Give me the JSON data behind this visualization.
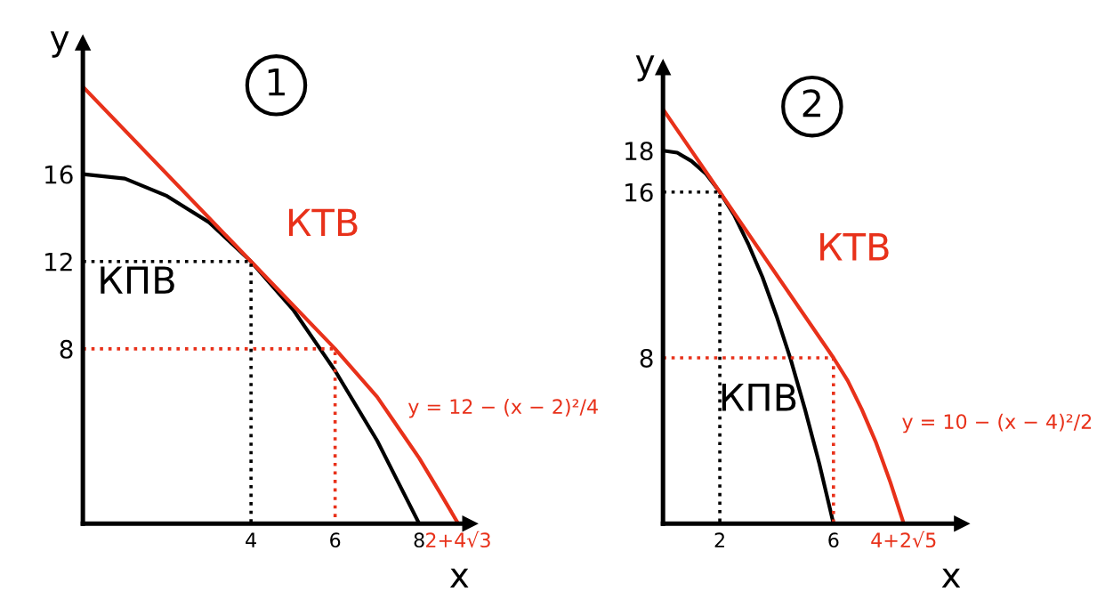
{
  "chart_data": [
    {
      "type": "line",
      "title": "1",
      "xlabel": "x",
      "ylabel": "y",
      "xlim": [
        0,
        9.2
      ],
      "ylim": [
        0,
        22
      ],
      "xticks": [
        4,
        6,
        8,
        {
          "value": 8.928,
          "label": "2+4√3"
        }
      ],
      "yticks": [
        8,
        12,
        16
      ],
      "grid": false,
      "legend": false,
      "series": [
        {
          "color": "#000000",
          "x": [
            0,
            0.5,
            1,
            1.5,
            2,
            2.5,
            3,
            3.5,
            4,
            4.5,
            5,
            5.5,
            6,
            6.5,
            7,
            7.5,
            8
          ],
          "values": [
            16,
            15.9,
            15.8,
            15.4,
            15,
            14.4,
            13.8,
            12.9,
            12,
            10.9,
            9.8,
            8.4,
            7,
            5.4,
            3.8,
            1.9,
            0
          ]
        },
        {
          "color": "#e8311a",
          "x": [
            0,
            4,
            6,
            6.5,
            7,
            7.5,
            8,
            8.5,
            8.928
          ],
          "values": [
            20,
            12,
            8,
            6.9,
            5.8,
            4.4,
            3,
            1.4,
            0
          ]
        },
        {
          "color": "#000000",
          "line_style": "dotted",
          "x": [
            0,
            4,
            4
          ],
          "values": [
            12,
            12,
            0
          ]
        },
        {
          "color": "#e8311a",
          "line_style": "dotted",
          "x": [
            0,
            6,
            6
          ],
          "values": [
            8,
            8,
            0
          ]
        }
      ],
      "annotations": [
        "КТВ",
        "КПВ",
        "y = 12 − (x − 2)²/4"
      ]
    },
    {
      "type": "line",
      "title": "2",
      "xlabel": "x",
      "ylabel": "y",
      "xlim": [
        0,
        10.5
      ],
      "ylim": [
        0,
        22
      ],
      "xticks": [
        2,
        6,
        {
          "value": 8.472,
          "label": "4+2√5"
        }
      ],
      "yticks": [
        8,
        16,
        18
      ],
      "grid": false,
      "legend": false,
      "series": [
        {
          "color": "#000000",
          "x": [
            0,
            0.5,
            1,
            1.5,
            2,
            2.5,
            3,
            3.5,
            4,
            4.5,
            5,
            5.5,
            6
          ],
          "values": [
            18,
            17.9,
            17.5,
            16.9,
            16,
            14.9,
            13.5,
            11.9,
            10,
            7.9,
            5.5,
            2.9,
            0
          ]
        },
        {
          "color": "#e8311a",
          "x": [
            0,
            2,
            6,
            6.5,
            7,
            7.5,
            8,
            8.472
          ],
          "values": [
            20,
            16,
            8,
            6.9,
            5.5,
            3.9,
            2,
            0
          ]
        },
        {
          "color": "#000000",
          "line_style": "dotted",
          "x": [
            0,
            2,
            2
          ],
          "values": [
            16,
            16,
            0
          ]
        },
        {
          "color": "#e8311a",
          "line_style": "dotted",
          "x": [
            0,
            6,
            6
          ],
          "values": [
            8,
            8,
            0
          ]
        }
      ],
      "annotations": [
        "КТВ",
        "КПВ",
        "y = 10 − (x − 4)²/2"
      ]
    }
  ]
}
